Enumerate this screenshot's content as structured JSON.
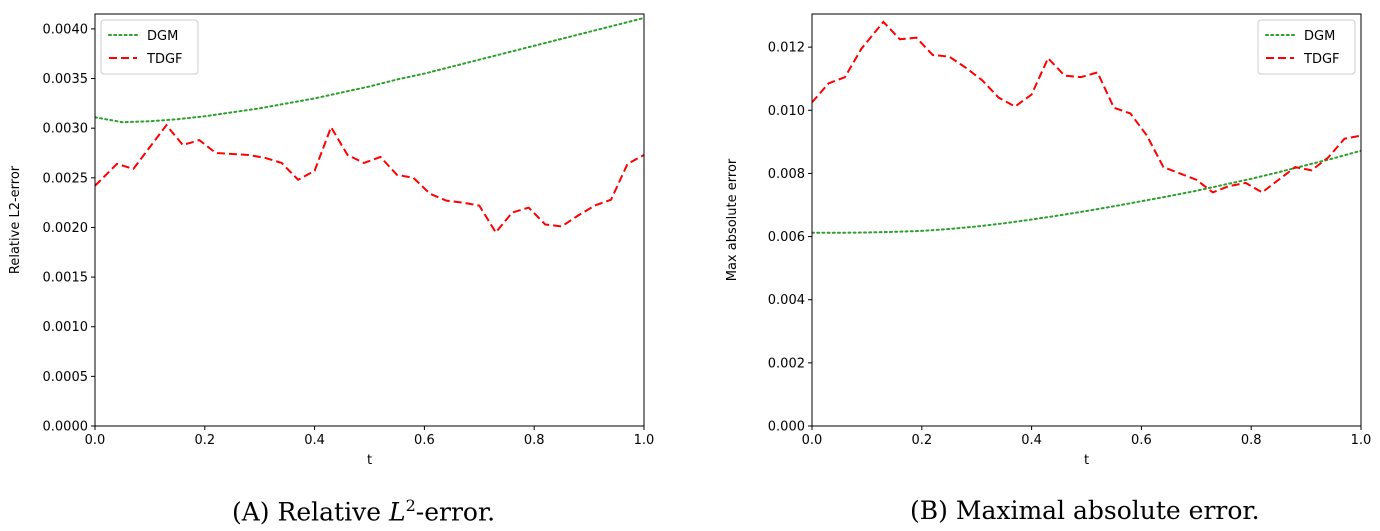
{
  "chart_data": [
    {
      "type": "line",
      "title": "",
      "xlabel": "t",
      "ylabel": "Relative L2-error",
      "xlim": [
        0.0,
        1.0
      ],
      "ylim": [
        0.0,
        0.00415
      ],
      "xticks": [
        "0.0",
        "0.2",
        "0.4",
        "0.6",
        "0.8",
        "1.0"
      ],
      "yticks": [
        "0.0000",
        "0.0005",
        "0.0010",
        "0.0015",
        "0.0020",
        "0.0025",
        "0.0030",
        "0.0035",
        "0.0040"
      ],
      "legend_position": "top-left",
      "grid": false,
      "series": [
        {
          "name": "DGM",
          "color": "#2ca02c",
          "style": "dotted",
          "x": [
            0.0,
            0.05,
            0.1,
            0.15,
            0.2,
            0.25,
            0.3,
            0.35,
            0.4,
            0.45,
            0.5,
            0.55,
            0.6,
            0.65,
            0.7,
            0.75,
            0.8,
            0.85,
            0.9,
            0.95,
            1.0
          ],
          "y": [
            0.00311,
            0.00306,
            0.00307,
            0.00309,
            0.00312,
            0.00316,
            0.0032,
            0.00325,
            0.0033,
            0.00336,
            0.00342,
            0.00349,
            0.00355,
            0.00362,
            0.00369,
            0.00376,
            0.00383,
            0.0039,
            0.00397,
            0.00404,
            0.00411
          ]
        },
        {
          "name": "TDGF",
          "color": "#ff0000",
          "style": "dashed",
          "x": [
            0.0,
            0.04,
            0.07,
            0.1,
            0.13,
            0.16,
            0.19,
            0.22,
            0.25,
            0.28,
            0.31,
            0.34,
            0.37,
            0.4,
            0.43,
            0.46,
            0.49,
            0.52,
            0.55,
            0.58,
            0.61,
            0.64,
            0.67,
            0.7,
            0.73,
            0.76,
            0.79,
            0.82,
            0.85,
            0.88,
            0.91,
            0.94,
            0.97,
            1.0
          ],
          "y": [
            0.00242,
            0.00264,
            0.00259,
            0.00281,
            0.00303,
            0.00283,
            0.00288,
            0.00275,
            0.00274,
            0.00273,
            0.0027,
            0.00265,
            0.00248,
            0.00257,
            0.00301,
            0.00273,
            0.00265,
            0.00271,
            0.00253,
            0.0025,
            0.00234,
            0.00227,
            0.00225,
            0.00222,
            0.00195,
            0.00215,
            0.0022,
            0.00203,
            0.00201,
            0.00212,
            0.00222,
            0.00228,
            0.00264,
            0.00273
          ]
        }
      ]
    },
    {
      "type": "line",
      "title": "",
      "xlabel": "t",
      "ylabel": "Max absolute error",
      "xlim": [
        0.0,
        1.0
      ],
      "ylim": [
        0.0,
        0.01305
      ],
      "xticks": [
        "0.0",
        "0.2",
        "0.4",
        "0.6",
        "0.8",
        "1.0"
      ],
      "yticks": [
        "0.000",
        "0.002",
        "0.004",
        "0.006",
        "0.008",
        "0.010",
        "0.012"
      ],
      "legend_position": "top-right",
      "grid": false,
      "series": [
        {
          "name": "DGM",
          "color": "#2ca02c",
          "style": "dotted",
          "x": [
            0.0,
            0.05,
            0.1,
            0.15,
            0.2,
            0.25,
            0.3,
            0.35,
            0.4,
            0.45,
            0.5,
            0.55,
            0.6,
            0.65,
            0.7,
            0.75,
            0.8,
            0.85,
            0.9,
            0.95,
            1.0
          ],
          "y": [
            0.00612,
            0.00612,
            0.00613,
            0.00615,
            0.00618,
            0.00624,
            0.00632,
            0.00642,
            0.00654,
            0.00667,
            0.00681,
            0.00696,
            0.00712,
            0.00728,
            0.00745,
            0.00764,
            0.00783,
            0.00804,
            0.00826,
            0.00848,
            0.00872
          ]
        },
        {
          "name": "TDGF",
          "color": "#ff0000",
          "style": "dashed",
          "x": [
            0.0,
            0.03,
            0.06,
            0.09,
            0.13,
            0.16,
            0.19,
            0.22,
            0.25,
            0.28,
            0.31,
            0.34,
            0.37,
            0.4,
            0.43,
            0.46,
            0.49,
            0.52,
            0.55,
            0.58,
            0.61,
            0.64,
            0.67,
            0.7,
            0.73,
            0.76,
            0.79,
            0.82,
            0.85,
            0.88,
            0.91,
            0.94,
            0.97,
            1.0
          ],
          "y": [
            0.01025,
            0.01085,
            0.01105,
            0.01195,
            0.0128,
            0.01225,
            0.0123,
            0.01175,
            0.0117,
            0.01135,
            0.01095,
            0.0104,
            0.01012,
            0.0105,
            0.01165,
            0.0111,
            0.01105,
            0.0112,
            0.01008,
            0.0099,
            0.0092,
            0.0082,
            0.008,
            0.0078,
            0.0074,
            0.0076,
            0.0077,
            0.0074,
            0.0078,
            0.0082,
            0.0081,
            0.0085,
            0.0091,
            0.0092
          ]
        }
      ]
    }
  ],
  "captions": {
    "a_label": "(A)",
    "a_text_pre": "Relative ",
    "a_symbol": "L",
    "a_exponent": "2",
    "a_text_post": "-error.",
    "b_label": "(B)",
    "b_text": "Maximal absolute error."
  }
}
